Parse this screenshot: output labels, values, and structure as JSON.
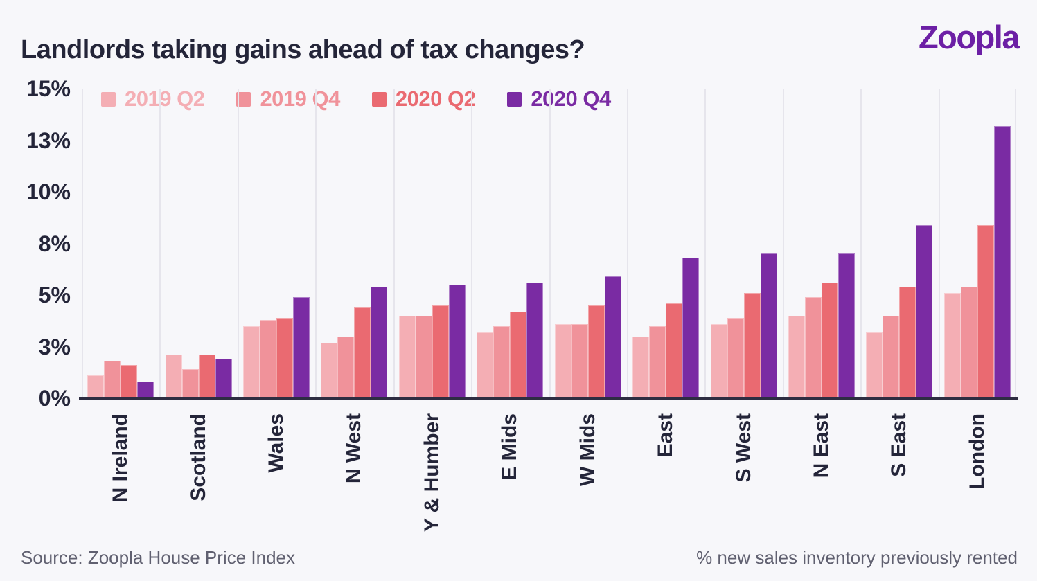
{
  "header": {
    "logo_text": "Zoopla",
    "logo_color": "#6C1FA5"
  },
  "footer": {
    "source": "Source: Zoopla House Price Index",
    "note": "% new sales inventory previously rented"
  },
  "colors": {
    "background": "#F7F7FA",
    "text_dark": "#242539",
    "text_gray": "#606070",
    "gridline": "#E6E5EC",
    "axis_line": "#2E2D42"
  },
  "chart_data": {
    "type": "bar",
    "title": "Landlords taking gains ahead of tax changes?",
    "unit": "%",
    "legend_position": "top-left",
    "grid": "vertical-only",
    "ylim": [
      0,
      15
    ],
    "categories": [
      "N Ireland",
      "Scotland",
      "Wales",
      "N West",
      "Y & Humber",
      "E Mids",
      "W Mids",
      "East",
      "S West",
      "N East",
      "S East",
      "London"
    ],
    "series": [
      {
        "name": "2019 Q2",
        "color": "#F4AEB4",
        "values": [
          1.1,
          2.1,
          3.5,
          2.7,
          4.0,
          3.2,
          3.6,
          3.0,
          3.6,
          4.0,
          3.2,
          5.1
        ]
      },
      {
        "name": "2019 Q4",
        "color": "#F0929A",
        "values": [
          1.8,
          1.4,
          3.8,
          3.0,
          4.0,
          3.5,
          3.6,
          3.5,
          3.9,
          4.9,
          4.0,
          5.4
        ]
      },
      {
        "name": "2020 Q2",
        "color": "#EA6A71",
        "values": [
          1.6,
          2.1,
          3.9,
          4.4,
          4.5,
          4.2,
          4.5,
          4.6,
          5.1,
          5.6,
          5.4,
          8.4
        ]
      },
      {
        "name": "2020 Q4",
        "color": "#7A2BA3",
        "values": [
          0.8,
          1.9,
          4.9,
          5.4,
          5.5,
          5.6,
          5.9,
          6.8,
          7.0,
          7.0,
          8.4,
          13.2
        ]
      }
    ],
    "y_ticks": [
      {
        "value": 0,
        "label": "0%"
      },
      {
        "value": 2.5,
        "label": "3%"
      },
      {
        "value": 5,
        "label": "5%"
      },
      {
        "value": 7.5,
        "label": "8%"
      },
      {
        "value": 10,
        "label": "10%"
      },
      {
        "value": 12.5,
        "label": "13%"
      },
      {
        "value": 15,
        "label": "15%"
      }
    ]
  }
}
